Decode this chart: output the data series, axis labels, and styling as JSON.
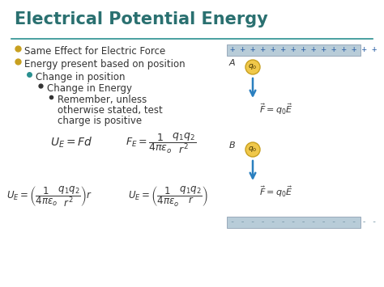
{
  "title": "Electrical Potential Energy",
  "title_color": "#2a7070",
  "title_fontsize": 15,
  "bg_color": "#ffffff",
  "border_color": "#aaaaaa",
  "slide_bg": "#e8e8e8",
  "bullet_color": "#c8a020",
  "teal_color": "#2a9090",
  "dark": "#333333",
  "bullet1": "Same Effect for Electric Force",
  "bullet2": "Energy present based on position",
  "bullet3": "Change in position",
  "bullet4": "Change in Energy",
  "bullet5_line1": "Remember, unless",
  "bullet5_line2": "otherwise stated, test",
  "bullet5_line3": "charge is positive",
  "arrow_color": "#2a7fbf",
  "charge_ball_color": "#f0c84a",
  "charge_ball_edge": "#c8a020",
  "plus_bar_bg": "#b8ccd8",
  "dash_bar_bg": "#b8ccd8",
  "plus_text_color": "#3366aa",
  "dash_text_color": "#7a9aaa"
}
